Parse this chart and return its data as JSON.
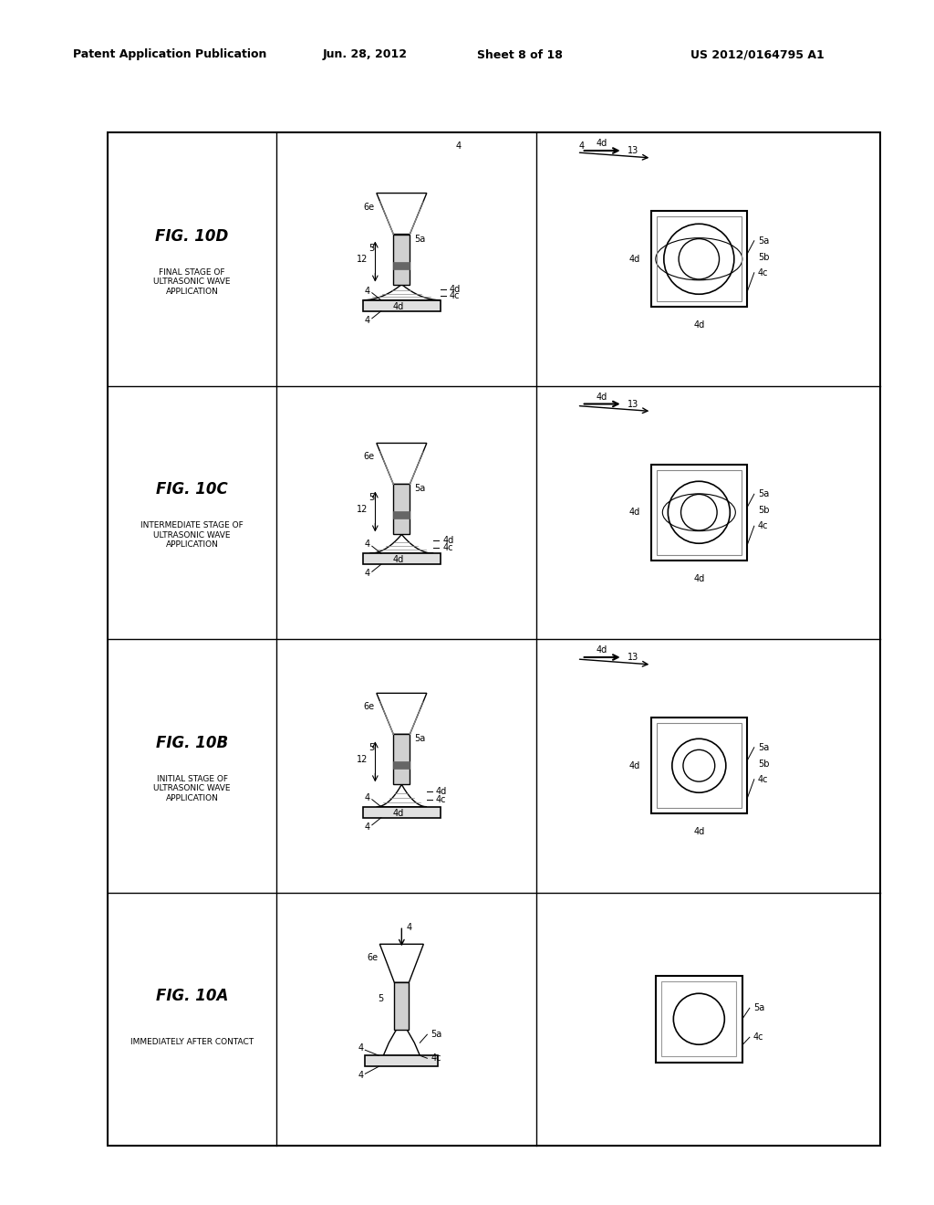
{
  "title_header": "Patent Application Publication",
  "date": "Jun. 28, 2012",
  "sheet": "Sheet 8 of 18",
  "patent_num": "US 2012/0164795 A1",
  "background_color": "#ffffff",
  "border_color": "#000000",
  "figures": [
    {
      "name": "FIG. 10A",
      "label": "IMMEDIATELY AFTER CONTACT",
      "stage": "10A"
    },
    {
      "name": "FIG. 10B",
      "label": "INITIAL STAGE OF\nULTRASONIC WAVE\nAPPLICATION",
      "stage": "10B"
    },
    {
      "name": "FIG. 10C",
      "label": "INTERMEDIATE STAGE OF\nULTRASONIC WAVE\nAPPLICATION",
      "stage": "10C"
    },
    {
      "name": "FIG. 10D",
      "label": "FINAL STAGE OF\nULTRASONIC WAVE\nAPPLICATION",
      "stage": "10D"
    }
  ]
}
